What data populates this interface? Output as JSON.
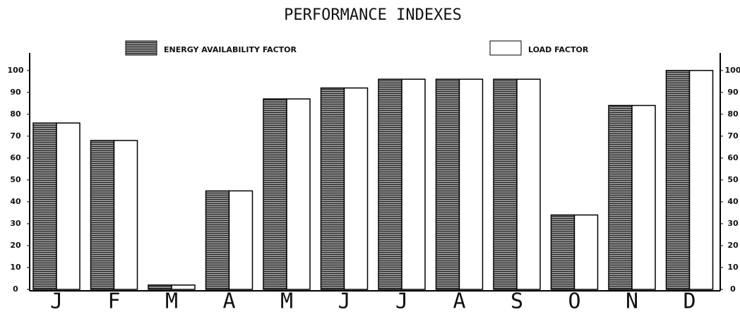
{
  "chart_data": {
    "type": "bar",
    "title": "PERFORMANCE INDEXES",
    "categories": [
      "J",
      "F",
      "M",
      "A",
      "M",
      "J",
      "J",
      "A",
      "S",
      "O",
      "N",
      "D"
    ],
    "series": [
      {
        "name": "ENERGY AVAILABILITY FACTOR",
        "color": "#8c8c8c",
        "values": [
          76,
          68,
          2,
          45,
          87,
          92,
          96,
          96,
          96,
          34,
          84,
          100
        ]
      },
      {
        "name": "LOAD FACTOR",
        "color": "#ffffff",
        "values": [
          76,
          68,
          2,
          45,
          87,
          92,
          96,
          96,
          96,
          34,
          84,
          100
        ]
      }
    ],
    "ylim": [
      0,
      108
    ],
    "yticks": [
      0,
      10,
      20,
      30,
      40,
      50,
      60,
      70,
      80,
      90,
      100
    ],
    "y2lim": [
      0,
      108
    ],
    "y2ticks": [
      0,
      10,
      20,
      30,
      40,
      50,
      60,
      70,
      80,
      90,
      100
    ]
  }
}
